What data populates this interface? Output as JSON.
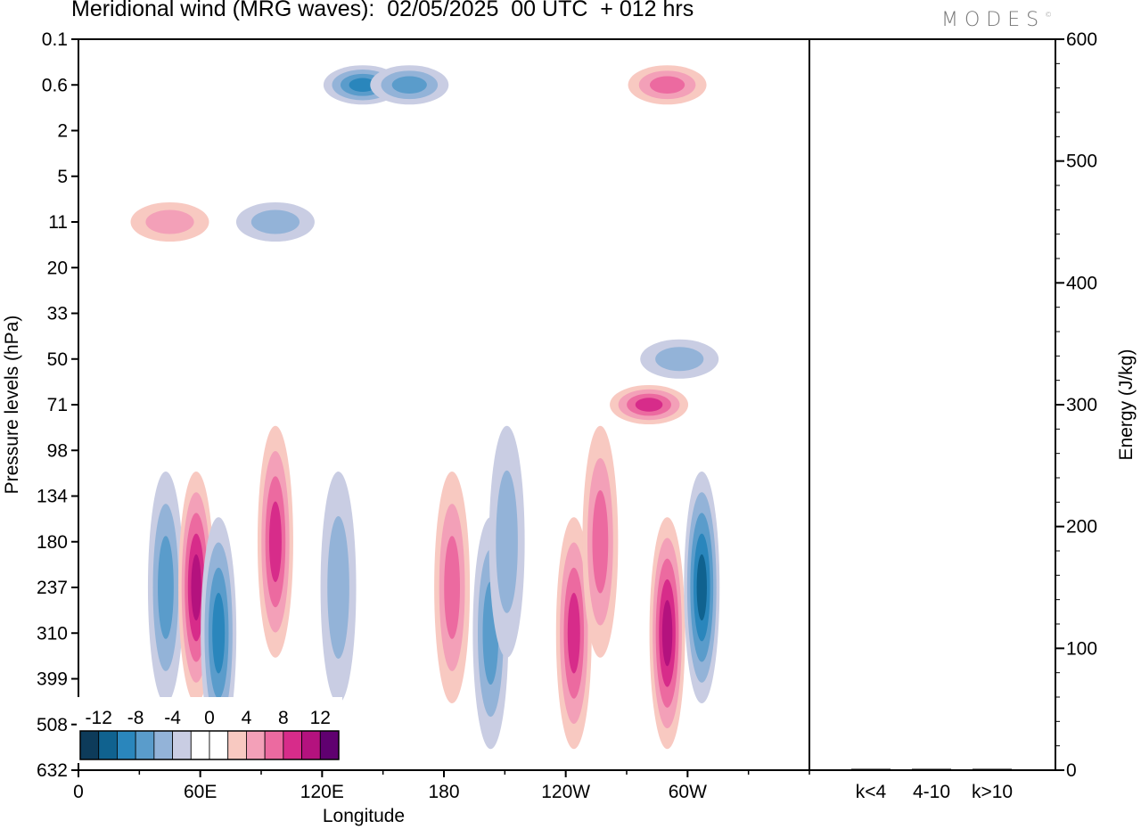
{
  "header": {
    "title": "Meridional wind (MRG waves):  02/05/2025  00 UTC  + 012 hrs",
    "logo": "MODES",
    "logo_mark": "©"
  },
  "chart_data": [
    {
      "type": "heatmap",
      "title": "Meridional wind (MRG waves):  02/05/2025  00 UTC  + 012 hrs",
      "xlabel": "Longitude",
      "ylabel": "Pressure levels (hPa)",
      "x_ticks": [
        "0",
        "60E",
        "120E",
        "180",
        "120W",
        "60W"
      ],
      "y_ticks": [
        "0.1",
        "0.6",
        "2",
        "5",
        "11",
        "20",
        "33",
        "50",
        "71",
        "98",
        "134",
        "180",
        "237",
        "310",
        "399",
        "508",
        "632"
      ],
      "colorbar": {
        "tick_labels": [
          "-12",
          "-8",
          "-4",
          "0",
          "4",
          "8",
          "12"
        ],
        "levels": [
          -14,
          -12,
          -10,
          -8,
          -6,
          -4,
          -2,
          0,
          2,
          4,
          6,
          8,
          10,
          12,
          14
        ],
        "colors": [
          "#0d3b5a",
          "#10628f",
          "#2a86bc",
          "#5a9ccb",
          "#93b3d8",
          "#c9cde3",
          "#ffffff",
          "#ffffff",
          "#f8c9c1",
          "#f3a0b8",
          "#ec6aa0",
          "#d72c8a",
          "#b4127e",
          "#600070"
        ]
      },
      "features": [
        {
          "sign": "neg",
          "lon": 43,
          "level": 237,
          "amplitude": -6
        },
        {
          "sign": "pos",
          "lon": 58,
          "level": 237,
          "amplitude": 10
        },
        {
          "sign": "neg",
          "lon": 69,
          "level": 310,
          "amplitude": -9
        },
        {
          "sign": "pos",
          "lon": 97,
          "level": 180,
          "amplitude": 8
        },
        {
          "sign": "neg",
          "lon": 128,
          "level": 237,
          "amplitude": -4
        },
        {
          "sign": "pos",
          "lon": 184,
          "level": 237,
          "amplitude": 6
        },
        {
          "sign": "neg",
          "lon": 203,
          "level": 310,
          "amplitude": -6
        },
        {
          "sign": "neg",
          "lon": 211,
          "level": 180,
          "amplitude": -5
        },
        {
          "sign": "pos",
          "lon": 244,
          "level": 310,
          "amplitude": 8
        },
        {
          "sign": "pos",
          "lon": 257,
          "level": 180,
          "amplitude": 7
        },
        {
          "sign": "pos",
          "lon": 290,
          "level": 310,
          "amplitude": 10
        },
        {
          "sign": "neg",
          "lon": 307,
          "level": 237,
          "amplitude": -11
        },
        {
          "sign": "pos",
          "lon": 281,
          "level": 71,
          "amplitude": 8
        },
        {
          "sign": "neg",
          "lon": 296,
          "level": 50,
          "amplitude": -5
        },
        {
          "sign": "neg",
          "lon": 140,
          "level": 0.6,
          "amplitude": -8
        },
        {
          "sign": "neg",
          "lon": 163,
          "level": 0.6,
          "amplitude": -6
        },
        {
          "sign": "pos",
          "lon": 290,
          "level": 0.6,
          "amplitude": 7
        },
        {
          "sign": "neg",
          "lon": 97,
          "level": 11,
          "amplitude": -5
        },
        {
          "sign": "pos",
          "lon": 45,
          "level": 11,
          "amplitude": 4
        }
      ]
    },
    {
      "type": "bar",
      "categories": [
        "k<4",
        "4-10",
        "k>10"
      ],
      "values": [
        0,
        1,
        0
      ],
      "ylabel": "Energy (J/kg)",
      "y_ticks": [
        "0",
        "100",
        "200",
        "300",
        "400",
        "500",
        "600"
      ],
      "ylim": [
        0,
        600
      ]
    }
  ]
}
